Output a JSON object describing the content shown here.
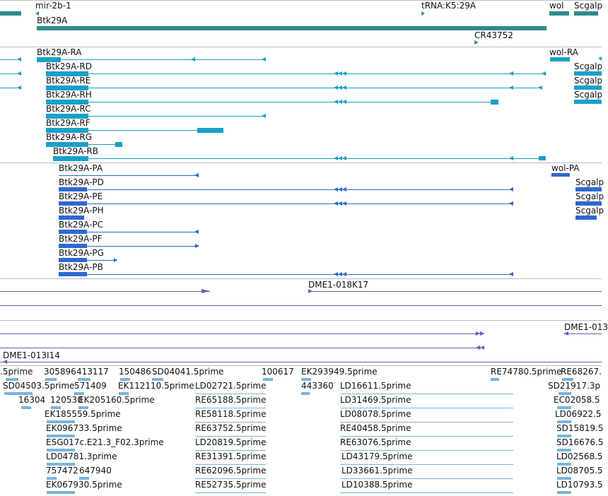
{
  "colors": {
    "gene": "#2e8b8b",
    "transcript": "#1aa0c8",
    "protein": "#2a6ad0",
    "clone": "#7755bb",
    "est": "#78b4dc"
  },
  "gene_track": {
    "labels": [
      "mir-2b-1",
      "tRNA:K5:29A",
      "wol",
      "Scgalp",
      "Btk29A",
      "CR43752"
    ]
  },
  "transcript_track": {
    "labels": [
      "Btk29A-RA",
      "wol-RA",
      "Btk29A-RD",
      "Scgalp",
      "Btk29A-RE",
      "Scgalp",
      "Btk29A-RH",
      "Scgalp",
      "Btk29A-RC",
      "Btk29A-RF",
      "Btk29A-RG",
      "Btk29A-RB"
    ]
  },
  "protein_track": {
    "labels": [
      "Btk29A-PA",
      "wol-PA",
      "Btk29A-PD",
      "Scgalp",
      "Btk29A-PE",
      "Scgalp",
      "Btk29A-PH",
      "Scgalp",
      "Btk29A-PC",
      "Btk29A-PF",
      "Btk29A-PG",
      "Btk29A-PB"
    ]
  },
  "clone_track": {
    "labels": [
      "DME1-018K17",
      "DME1-013",
      "DME1-013I14"
    ]
  },
  "est_track": {
    "labels": [
      ".5prime",
      "305896",
      "413117",
      "150486",
      "SD04041.5prime",
      "100617",
      "EK293949.5prime",
      "RE74780.5prime",
      "RE68267.",
      "SD04503.5prime",
      "571409",
      "EK112110.5prime",
      "LD02721.5prime",
      "443360",
      "LD16611.5prime",
      "SD21917.3p",
      "16304",
      "120530",
      "EK205160.5prime",
      "RE65188.5prime",
      "LD31469.5prime",
      "EC02058.5",
      "EK185559.5prime",
      "RE58118.5prime",
      "LD08078.5prime",
      "LD06922.5",
      "EK096733.5prime",
      "RE63752.5prime",
      "RE40458.5prime",
      "SD15819.5",
      "ESG017c.E21.3_F02.3prime",
      "LD20819.5prime",
      "RE63076.5prime",
      "SD16676.5",
      "LD04781.3prime",
      "RE31391.5prime",
      "LD43179.5prime",
      "LD02568.5",
      "757472",
      "647940",
      "RE62096.5prime",
      "LD33661.5prime",
      "LD08705.5",
      "EK067930.5prime",
      "RE52735.5prime",
      "LD10388.5prime",
      "LD10793.5"
    ]
  }
}
